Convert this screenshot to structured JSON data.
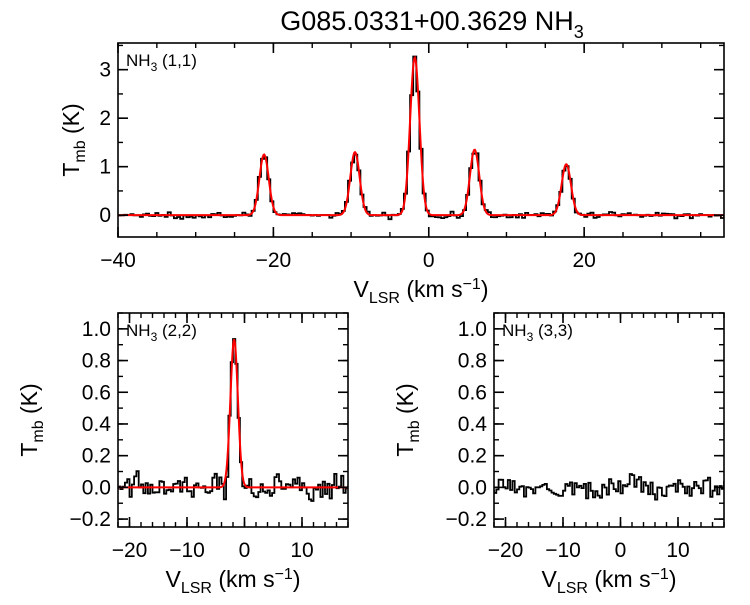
{
  "title": {
    "main": "G085.0331+00.3629 NH",
    "sub": "3"
  },
  "colors": {
    "data": "#000000",
    "fit": "#ff0000",
    "axes": "#000000"
  },
  "chart_data": [
    {
      "type": "line",
      "panel": "NH3 (1,1)",
      "label": {
        "base": "NH",
        "sub": "3",
        "rest": " (1,1)"
      },
      "xlabel": {
        "base": "V",
        "sub": "LSR",
        "rest": " (km s",
        "sup": "−1",
        "close": ")"
      },
      "ylabel": {
        "base": "T",
        "sub": "mb",
        "rest": " (K)"
      },
      "xlim": [
        -40,
        38
      ],
      "ylim": [
        -0.45,
        3.55
      ],
      "xticks": [
        -40,
        -20,
        0,
        20
      ],
      "xtick_labels": [
        "−40",
        "−20",
        "0",
        "20"
      ],
      "yticks": [
        0,
        1,
        2,
        3
      ],
      "ytick_labels": [
        "0",
        "1",
        "2",
        "3"
      ],
      "x_minor_step": 5,
      "y_minor_step": 0.5,
      "line_peaks": [
        {
          "v": -21.2,
          "amp": 1.25
        },
        {
          "v": -9.5,
          "amp": 1.3
        },
        {
          "v": -1.8,
          "amp": 3.25
        },
        {
          "v": 5.9,
          "amp": 1.35
        },
        {
          "v": 17.7,
          "amp": 1.05
        }
      ],
      "line_width_kms": 0.6,
      "noise_rms": 0.03,
      "channel_kms": 0.4,
      "series": [
        {
          "name": "Observed spectrum",
          "style": "histogram",
          "color": "#000000"
        },
        {
          "name": "Fit",
          "style": "line",
          "color": "#ff0000"
        }
      ]
    },
    {
      "type": "line",
      "panel": "NH3 (2,2)",
      "label": {
        "base": "NH",
        "sub": "3",
        "rest": " (2,2)"
      },
      "xlabel": {
        "base": "V",
        "sub": "LSR",
        "rest": " (km s",
        "sup": "−1",
        "close": ")"
      },
      "ylabel": {
        "base": "T",
        "sub": "mb",
        "rest": " (K)"
      },
      "xlim": [
        -22,
        18
      ],
      "ylim": [
        -0.25,
        1.1
      ],
      "xticks": [
        -20,
        -10,
        0,
        10
      ],
      "xtick_labels": [
        "−20",
        "−10",
        "0",
        "10"
      ],
      "yticks": [
        -0.2,
        0.0,
        0.2,
        0.4,
        0.6,
        0.8,
        1.0
      ],
      "ytick_labels": [
        "−0.2",
        "0.0",
        "0.2",
        "0.4",
        "0.6",
        "0.8",
        "1.0"
      ],
      "x_minor_step": 2,
      "y_minor_step": 0.1,
      "line_peaks": [
        {
          "v": -1.8,
          "amp": 0.93
        }
      ],
      "line_width_kms": 0.65,
      "noise_rms": 0.04,
      "channel_kms": 0.4,
      "series": [
        {
          "name": "Observed spectrum",
          "style": "histogram",
          "color": "#000000"
        },
        {
          "name": "Fit",
          "style": "line",
          "color": "#ff0000"
        }
      ]
    },
    {
      "type": "line",
      "panel": "NH3 (3,3)",
      "label": {
        "base": "NH",
        "sub": "3",
        "rest": " (3,3)"
      },
      "xlabel": {
        "base": "V",
        "sub": "LSR",
        "rest": " (km s",
        "sup": "−1",
        "close": ")"
      },
      "ylabel": {
        "base": "T",
        "sub": "mb",
        "rest": " (K)"
      },
      "xlim": [
        -22,
        18
      ],
      "ylim": [
        -0.25,
        1.1
      ],
      "xticks": [
        -20,
        -10,
        0,
        10
      ],
      "xtick_labels": [
        "−20",
        "−10",
        "0",
        "10"
      ],
      "yticks": [
        -0.2,
        0.0,
        0.2,
        0.4,
        0.6,
        0.8,
        1.0
      ],
      "ytick_labels": [
        "−0.2",
        "0.0",
        "0.2",
        "0.4",
        "0.6",
        "0.8",
        "1.0"
      ],
      "x_minor_step": 2,
      "y_minor_step": 0.1,
      "line_peaks": [],
      "line_width_kms": 0.6,
      "noise_rms": 0.035,
      "channel_kms": 0.4,
      "series": [
        {
          "name": "Observed spectrum",
          "style": "histogram",
          "color": "#000000"
        }
      ]
    }
  ]
}
